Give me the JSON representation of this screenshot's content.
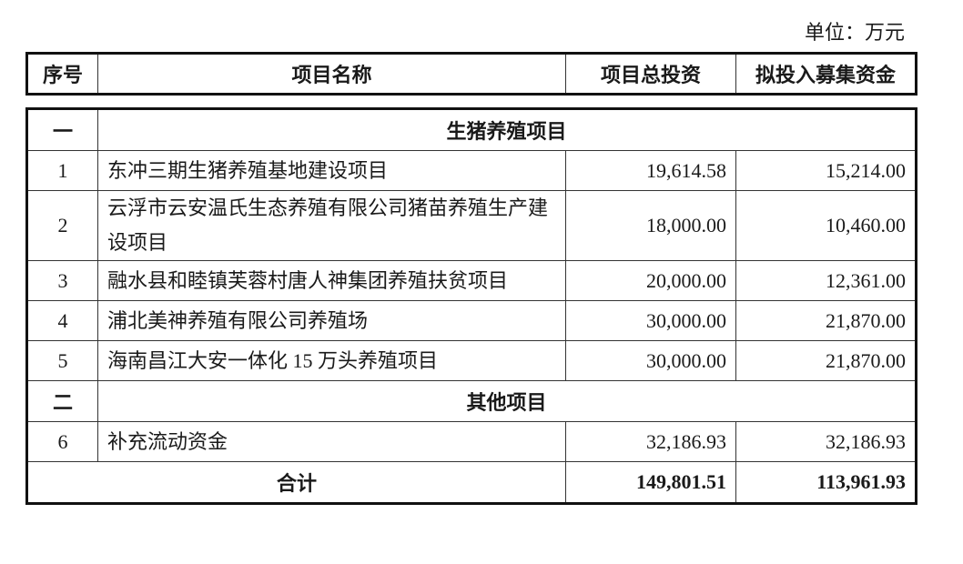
{
  "unit_label": "单位：万元",
  "headers": [
    "序号",
    "项目名称",
    "项目总投资",
    "拟投入募集资金"
  ],
  "sections": [
    {
      "index": "一",
      "title": "生猪养殖项目",
      "rows": [
        {
          "no": "1",
          "name": "东冲三期生猪养殖基地建设项目",
          "total": "19,614.58",
          "raised": "15,214.00"
        },
        {
          "no": "2",
          "name": "云浮市云安温氏生态养殖有限公司猪苗养殖生产建设项目",
          "total": "18,000.00",
          "raised": "10,460.00"
        },
        {
          "no": "3",
          "name": "融水县和睦镇芙蓉村唐人神集团养殖扶贫项目",
          "total": "20,000.00",
          "raised": "12,361.00"
        },
        {
          "no": "4",
          "name": "浦北美神养殖有限公司养殖场",
          "total": "30,000.00",
          "raised": "21,870.00"
        },
        {
          "no": "5",
          "name": "海南昌江大安一体化 15 万头养殖项目",
          "total": "30,000.00",
          "raised": "21,870.00"
        }
      ]
    },
    {
      "index": "二",
      "title": "其他项目",
      "rows": [
        {
          "no": "6",
          "name": "补充流动资金",
          "total": "32,186.93",
          "raised": "32,186.93"
        }
      ]
    }
  ],
  "total": {
    "label": "合计",
    "total": "149,801.51",
    "raised": "113,961.93"
  }
}
